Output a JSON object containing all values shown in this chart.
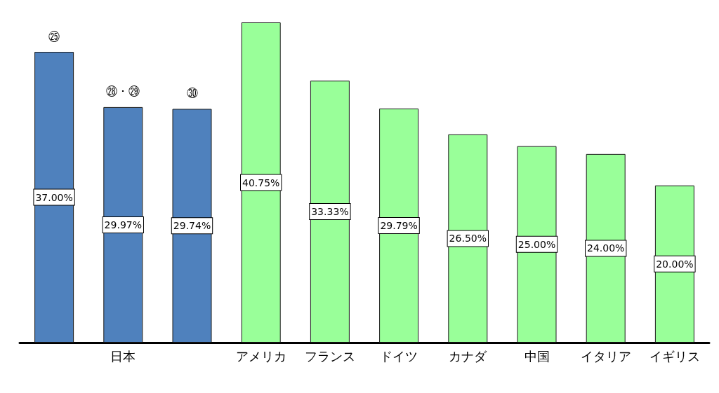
{
  "chart_data": {
    "type": "bar",
    "categories": [
      null,
      "日本",
      null,
      "アメリカ",
      "フランス",
      "ドイツ",
      "カナダ",
      "中国",
      "イタリア",
      "イギリス"
    ],
    "values": [
      37,
      29.97,
      29.74,
      40.75,
      33.33,
      29.79,
      26.5,
      25,
      24,
      20
    ],
    "colors": [
      "#4f81bd",
      "#4f81bd",
      "#4f81bd",
      "#99ff99",
      "#99ff99",
      "#99ff99",
      "#99ff99",
      "#99ff99",
      "#99ff99",
      "#99ff99"
    ],
    "value_labels": [
      "37.00%",
      "29.97%",
      "29.74%",
      "40.75%",
      "33.33%",
      "29.79%",
      "26.50%",
      "25.00%",
      "24.00%",
      "20.00%"
    ],
    "annotations": [
      {
        "text": "㉕",
        "y": 37
      },
      {
        "text": "㉘・㉙",
        "y": 29.97
      },
      {
        "text": "㉚",
        "y": 29.74
      }
    ],
    "grid": false
  }
}
